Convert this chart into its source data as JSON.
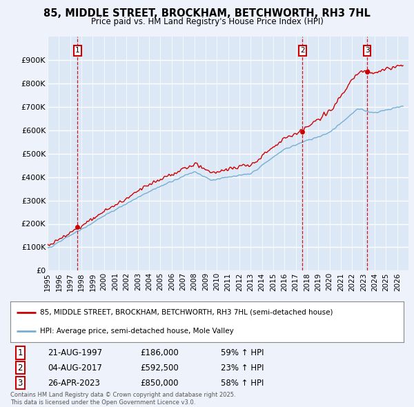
{
  "title": "85, MIDDLE STREET, BROCKHAM, BETCHWORTH, RH3 7HL",
  "subtitle": "Price paid vs. HM Land Registry's House Price Index (HPI)",
  "background_color": "#eef2fa",
  "plot_bg_color": "#dce8f5",
  "grid_color": "#ffffff",
  "sale_labels": [
    "1",
    "2",
    "3"
  ],
  "sale_years": [
    1997.638,
    2017.589,
    2023.319
  ],
  "sale_prices": [
    186000,
    592500,
    850000
  ],
  "legend_line1": "85, MIDDLE STREET, BROCKHAM, BETCHWORTH, RH3 7HL (semi-detached house)",
  "legend_line2": "HPI: Average price, semi-detached house, Mole Valley",
  "table_rows": [
    [
      "1",
      "21-AUG-1997",
      "£186,000",
      "59% ↑ HPI"
    ],
    [
      "2",
      "04-AUG-2017",
      "£592,500",
      "23% ↑ HPI"
    ],
    [
      "3",
      "26-APR-2023",
      "£850,000",
      "58% ↑ HPI"
    ]
  ],
  "footer": "Contains HM Land Registry data © Crown copyright and database right 2025.\nThis data is licensed under the Open Government Licence v3.0.",
  "red_color": "#cc0000",
  "blue_color": "#74afd3",
  "dashed_color": "#cc0000",
  "ylim": [
    0,
    1000000
  ],
  "ytick_vals": [
    0,
    100000,
    200000,
    300000,
    400000,
    500000,
    600000,
    700000,
    800000,
    900000
  ],
  "ytick_labels": [
    "£0",
    "£100K",
    "£200K",
    "£300K",
    "£400K",
    "£500K",
    "£600K",
    "£700K",
    "£800K",
    "£900K"
  ],
  "xlim": [
    1995,
    2027
  ],
  "xtick_years": [
    1995,
    1996,
    1997,
    1998,
    1999,
    2000,
    2001,
    2002,
    2003,
    2004,
    2005,
    2006,
    2007,
    2008,
    2009,
    2010,
    2011,
    2012,
    2013,
    2014,
    2015,
    2016,
    2017,
    2018,
    2019,
    2020,
    2021,
    2022,
    2023,
    2024,
    2025,
    2026
  ]
}
